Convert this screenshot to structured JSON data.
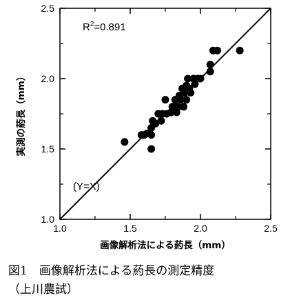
{
  "chart_data": {
    "type": "scatter",
    "title": "",
    "xlabel": "画像解析法による葯長（mm）",
    "ylabel": "実測の葯長（mm）",
    "xlim": [
      1.0,
      2.5
    ],
    "ylim": [
      1.0,
      2.5
    ],
    "x_ticks": [
      "1.0",
      "1.5",
      "2.0",
      "2.5"
    ],
    "y_ticks": [
      "1.0",
      "1.5",
      "2.0",
      "2.5"
    ],
    "reference_line": {
      "label": "(Y=X)",
      "slope": 1,
      "intercept": 0
    },
    "r_squared_prefix": "R",
    "r_squared_exponent": "2",
    "r_squared_value": "=0.891",
    "grid": false,
    "legend": "none",
    "points": [
      {
        "x": 1.46,
        "y": 1.55
      },
      {
        "x": 1.58,
        "y": 1.6
      },
      {
        "x": 1.6,
        "y": 1.6
      },
      {
        "x": 1.62,
        "y": 1.61
      },
      {
        "x": 1.65,
        "y": 1.6
      },
      {
        "x": 1.65,
        "y": 1.5
      },
      {
        "x": 1.65,
        "y": 1.65
      },
      {
        "x": 1.66,
        "y": 1.7
      },
      {
        "x": 1.68,
        "y": 1.68
      },
      {
        "x": 1.7,
        "y": 1.75
      },
      {
        "x": 1.72,
        "y": 1.7
      },
      {
        "x": 1.73,
        "y": 1.75
      },
      {
        "x": 1.75,
        "y": 1.85
      },
      {
        "x": 1.76,
        "y": 1.75
      },
      {
        "x": 1.79,
        "y": 1.76
      },
      {
        "x": 1.8,
        "y": 1.8
      },
      {
        "x": 1.82,
        "y": 1.85
      },
      {
        "x": 1.83,
        "y": 1.76
      },
      {
        "x": 1.84,
        "y": 1.8
      },
      {
        "x": 1.85,
        "y": 1.88
      },
      {
        "x": 1.86,
        "y": 1.85
      },
      {
        "x": 1.87,
        "y": 1.93
      },
      {
        "x": 1.88,
        "y": 1.8
      },
      {
        "x": 1.89,
        "y": 1.9
      },
      {
        "x": 1.9,
        "y": 1.85
      },
      {
        "x": 1.9,
        "y": 1.95
      },
      {
        "x": 1.91,
        "y": 2.0
      },
      {
        "x": 1.92,
        "y": 1.93
      },
      {
        "x": 1.93,
        "y": 1.9
      },
      {
        "x": 1.95,
        "y": 2.0
      },
      {
        "x": 1.96,
        "y": 1.96
      },
      {
        "x": 1.98,
        "y": 2.0
      },
      {
        "x": 2.0,
        "y": 2.0
      },
      {
        "x": 2.07,
        "y": 2.05
      },
      {
        "x": 2.07,
        "y": 2.1
      },
      {
        "x": 2.09,
        "y": 2.2
      },
      {
        "x": 2.12,
        "y": 2.2
      },
      {
        "x": 2.28,
        "y": 2.2
      }
    ]
  },
  "caption": {
    "line1": "図1　画像解析法による葯長の測定精度",
    "line2": "（上川農試）"
  }
}
